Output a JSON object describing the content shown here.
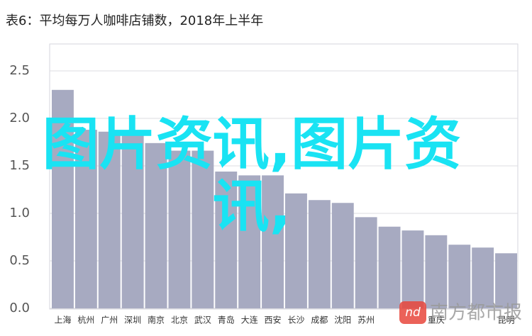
{
  "chart_data": {
    "type": "bar",
    "title": "表6：平均每万人咖啡店铺数，2018年上半年",
    "categories": [
      "上海",
      "杭州",
      "广州",
      "深圳",
      "南京",
      "北京",
      "武汉",
      "青岛",
      "大连",
      "西安",
      "长沙",
      "成都",
      "沈阳",
      "苏州",
      null,
      null,
      "重庆",
      null,
      null,
      "昆明"
    ],
    "values": [
      2.3,
      1.88,
      1.86,
      1.83,
      1.74,
      1.66,
      1.66,
      1.44,
      1.4,
      1.4,
      1.21,
      1.14,
      1.11,
      0.96,
      0.86,
      0.82,
      0.77,
      0.67,
      0.64,
      0.58
    ],
    "color": "#a7aac1",
    "ylim": [
      0,
      2.5
    ],
    "yticks": [
      {
        "value": 0,
        "label": "0.0"
      },
      {
        "value": 0.5,
        "label": "0.5"
      },
      {
        "value": 1,
        "label": "1.0"
      },
      {
        "value": 1.5,
        "label": "1.5"
      },
      {
        "value": 2,
        "label": "2.0"
      },
      {
        "value": 2.5,
        "label": "2.5"
      }
    ],
    "grid": true
  },
  "watermark": "图片资讯,图片资讯,",
  "logo": {
    "icon": "nd",
    "name": "南方都市报"
  }
}
